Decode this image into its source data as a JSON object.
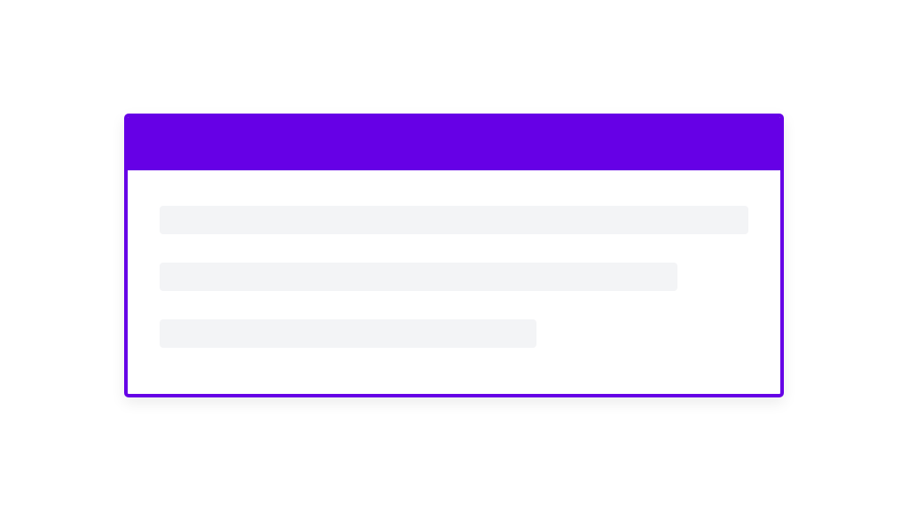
{
  "card": {
    "accent_color": "#6600e6",
    "placeholder_color": "#f3f4f6",
    "loading_state": "skeleton",
    "placeholder_lines": [
      {
        "fill_fraction": 1.0
      },
      {
        "fill_fraction": 0.88
      },
      {
        "fill_fraction": 0.64
      }
    ]
  }
}
